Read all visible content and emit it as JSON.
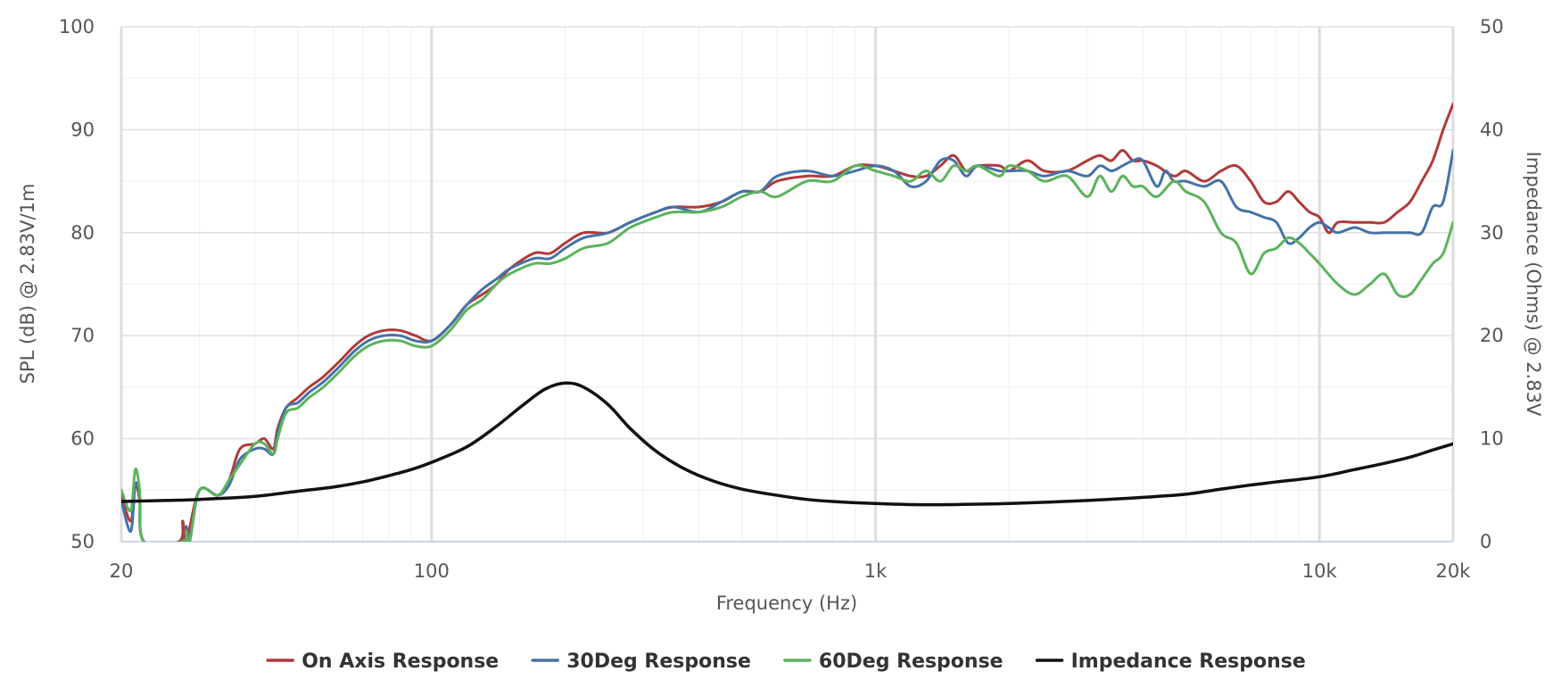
{
  "chart_data": {
    "type": "line",
    "xlabel": "Frequency (Hz)",
    "ylabel": "SPL (dB) @ 2.83V/1m",
    "y2label": "Impedance (Ohms) @ 2.83V",
    "xscale": "log",
    "xlim": [
      20,
      20000
    ],
    "ylim": [
      50,
      100
    ],
    "y2lim": [
      0,
      50
    ],
    "xticks": [
      {
        "value": 20,
        "label": "20"
      },
      {
        "value": 100,
        "label": "100"
      },
      {
        "value": 1000,
        "label": "1k"
      },
      {
        "value": 10000,
        "label": "10k"
      },
      {
        "value": 20000,
        "label": "20k"
      }
    ],
    "yticks": [
      50,
      60,
      70,
      80,
      90,
      100
    ],
    "y2ticks": [
      0,
      10,
      20,
      30,
      40,
      50
    ],
    "grid": true,
    "legend": "bottom-center",
    "series": [
      {
        "name": "On Axis Response",
        "axis": "left",
        "color": "#b03a3a",
        "points": [
          [
            20,
            54.5
          ],
          [
            21,
            52
          ],
          [
            21.5,
            55.5
          ],
          [
            22,
            54
          ],
          [
            22.5,
            50
          ],
          [
            27,
            50
          ],
          [
            27.5,
            52
          ],
          [
            28,
            50
          ],
          [
            30,
            55
          ],
          [
            33,
            54.5
          ],
          [
            35,
            56
          ],
          [
            37,
            59
          ],
          [
            40,
            59.5
          ],
          [
            42,
            60
          ],
          [
            44,
            59
          ],
          [
            45,
            61
          ],
          [
            47,
            63
          ],
          [
            50,
            64
          ],
          [
            53,
            65
          ],
          [
            57,
            66
          ],
          [
            62,
            67.5
          ],
          [
            67,
            69
          ],
          [
            72,
            70
          ],
          [
            78,
            70.5
          ],
          [
            85,
            70.5
          ],
          [
            92,
            70
          ],
          [
            100,
            69.5
          ],
          [
            110,
            71
          ],
          [
            120,
            73
          ],
          [
            130,
            74
          ],
          [
            140,
            75
          ],
          [
            150,
            76.5
          ],
          [
            170,
            78
          ],
          [
            185,
            78
          ],
          [
            200,
            79
          ],
          [
            220,
            80
          ],
          [
            250,
            80
          ],
          [
            280,
            81
          ],
          [
            320,
            82
          ],
          [
            350,
            82.5
          ],
          [
            400,
            82.5
          ],
          [
            450,
            83
          ],
          [
            500,
            84
          ],
          [
            550,
            84
          ],
          [
            600,
            85
          ],
          [
            700,
            85.5
          ],
          [
            800,
            85.5
          ],
          [
            900,
            86.5
          ],
          [
            1000,
            86.5
          ],
          [
            1100,
            86
          ],
          [
            1200,
            85.5
          ],
          [
            1300,
            85.5
          ],
          [
            1400,
            86.5
          ],
          [
            1500,
            87.5
          ],
          [
            1600,
            86
          ],
          [
            1700,
            86.5
          ],
          [
            1900,
            86.5
          ],
          [
            2000,
            86
          ],
          [
            2200,
            87
          ],
          [
            2400,
            86
          ],
          [
            2700,
            86
          ],
          [
            3000,
            87
          ],
          [
            3200,
            87.5
          ],
          [
            3400,
            87
          ],
          [
            3600,
            88
          ],
          [
            3800,
            87
          ],
          [
            4000,
            87
          ],
          [
            4300,
            86.5
          ],
          [
            4700,
            85.5
          ],
          [
            5000,
            86
          ],
          [
            5500,
            85
          ],
          [
            6000,
            86
          ],
          [
            6500,
            86.5
          ],
          [
            7000,
            85
          ],
          [
            7500,
            83
          ],
          [
            8000,
            83
          ],
          [
            8500,
            84
          ],
          [
            9000,
            83
          ],
          [
            9500,
            82
          ],
          [
            10000,
            81.5
          ],
          [
            10500,
            80
          ],
          [
            11000,
            81
          ],
          [
            12000,
            81
          ],
          [
            13000,
            81
          ],
          [
            14000,
            81
          ],
          [
            15000,
            82
          ],
          [
            16000,
            83
          ],
          [
            17000,
            85
          ],
          [
            18000,
            87
          ],
          [
            19000,
            90
          ],
          [
            20000,
            92.5
          ]
        ]
      },
      {
        "name": "30Deg Response",
        "axis": "left",
        "color": "#4472a8",
        "points": [
          [
            20,
            54
          ],
          [
            21,
            51
          ],
          [
            21.5,
            55.5
          ],
          [
            22,
            54.5
          ],
          [
            22.5,
            50
          ],
          [
            27.5,
            50
          ],
          [
            28,
            51.5
          ],
          [
            28.5,
            50
          ],
          [
            30,
            55
          ],
          [
            33,
            54.5
          ],
          [
            35,
            55.5
          ],
          [
            37,
            58
          ],
          [
            40,
            59
          ],
          [
            42,
            59
          ],
          [
            44,
            58.5
          ],
          [
            45,
            60.5
          ],
          [
            47,
            63
          ],
          [
            50,
            63.5
          ],
          [
            53,
            64.5
          ],
          [
            57,
            65.5
          ],
          [
            62,
            67
          ],
          [
            67,
            68.5
          ],
          [
            72,
            69.5
          ],
          [
            78,
            70
          ],
          [
            85,
            70
          ],
          [
            92,
            69.5
          ],
          [
            100,
            69.5
          ],
          [
            110,
            71
          ],
          [
            120,
            73
          ],
          [
            130,
            74.5
          ],
          [
            140,
            75.5
          ],
          [
            150,
            76.5
          ],
          [
            170,
            77.5
          ],
          [
            185,
            77.5
          ],
          [
            200,
            78.5
          ],
          [
            220,
            79.5
          ],
          [
            250,
            80
          ],
          [
            280,
            81
          ],
          [
            320,
            82
          ],
          [
            350,
            82.5
          ],
          [
            400,
            82
          ],
          [
            450,
            83
          ],
          [
            500,
            84
          ],
          [
            550,
            84
          ],
          [
            600,
            85.5
          ],
          [
            700,
            86
          ],
          [
            800,
            85.5
          ],
          [
            900,
            86
          ],
          [
            1000,
            86.5
          ],
          [
            1100,
            86
          ],
          [
            1200,
            84.5
          ],
          [
            1300,
            85
          ],
          [
            1400,
            87
          ],
          [
            1500,
            87
          ],
          [
            1600,
            85.5
          ],
          [
            1700,
            86.5
          ],
          [
            1900,
            86
          ],
          [
            2000,
            86
          ],
          [
            2200,
            86
          ],
          [
            2400,
            85.5
          ],
          [
            2700,
            86
          ],
          [
            3000,
            85.5
          ],
          [
            3200,
            86.5
          ],
          [
            3400,
            86
          ],
          [
            3600,
            86.5
          ],
          [
            3800,
            87
          ],
          [
            4000,
            87
          ],
          [
            4300,
            84.5
          ],
          [
            4500,
            86
          ],
          [
            4700,
            85
          ],
          [
            5000,
            85
          ],
          [
            5500,
            84.5
          ],
          [
            6000,
            85
          ],
          [
            6500,
            82.5
          ],
          [
            7000,
            82
          ],
          [
            7500,
            81.5
          ],
          [
            8000,
            81
          ],
          [
            8500,
            79
          ],
          [
            9000,
            79.5
          ],
          [
            9500,
            80.5
          ],
          [
            10000,
            81
          ],
          [
            10500,
            80.5
          ],
          [
            11000,
            80
          ],
          [
            12000,
            80.5
          ],
          [
            13000,
            80
          ],
          [
            14000,
            80
          ],
          [
            15000,
            80
          ],
          [
            16000,
            80
          ],
          [
            17000,
            80
          ],
          [
            18000,
            82.5
          ],
          [
            19000,
            83
          ],
          [
            20000,
            88
          ]
        ]
      },
      {
        "name": "60Deg Response",
        "axis": "left",
        "color": "#5bb35b",
        "points": [
          [
            20,
            55
          ],
          [
            21,
            53
          ],
          [
            21.5,
            57
          ],
          [
            22,
            55
          ],
          [
            22.5,
            50
          ],
          [
            27.5,
            50
          ],
          [
            28,
            51
          ],
          [
            28.5,
            50
          ],
          [
            30,
            55
          ],
          [
            33,
            54.5
          ],
          [
            35,
            56
          ],
          [
            37,
            57.5
          ],
          [
            40,
            59.5
          ],
          [
            42,
            59.5
          ],
          [
            44,
            58.5
          ],
          [
            45,
            60
          ],
          [
            47,
            62.5
          ],
          [
            50,
            63
          ],
          [
            53,
            64
          ],
          [
            57,
            65
          ],
          [
            62,
            66.5
          ],
          [
            67,
            68
          ],
          [
            72,
            69
          ],
          [
            78,
            69.5
          ],
          [
            85,
            69.5
          ],
          [
            92,
            69
          ],
          [
            100,
            69
          ],
          [
            110,
            70.5
          ],
          [
            120,
            72.5
          ],
          [
            130,
            73.5
          ],
          [
            140,
            75
          ],
          [
            150,
            76
          ],
          [
            170,
            77
          ],
          [
            185,
            77
          ],
          [
            200,
            77.5
          ],
          [
            220,
            78.5
          ],
          [
            250,
            79
          ],
          [
            280,
            80.5
          ],
          [
            320,
            81.5
          ],
          [
            350,
            82
          ],
          [
            400,
            82
          ],
          [
            450,
            82.5
          ],
          [
            500,
            83.5
          ],
          [
            550,
            84
          ],
          [
            600,
            83.5
          ],
          [
            700,
            85
          ],
          [
            800,
            85
          ],
          [
            900,
            86.5
          ],
          [
            1000,
            86
          ],
          [
            1100,
            85.5
          ],
          [
            1200,
            85
          ],
          [
            1300,
            86
          ],
          [
            1400,
            85
          ],
          [
            1500,
            86.5
          ],
          [
            1600,
            86
          ],
          [
            1700,
            86.5
          ],
          [
            1900,
            85.5
          ],
          [
            2000,
            86.5
          ],
          [
            2200,
            86
          ],
          [
            2400,
            85
          ],
          [
            2700,
            85.5
          ],
          [
            3000,
            83.5
          ],
          [
            3200,
            85.5
          ],
          [
            3400,
            84
          ],
          [
            3600,
            85.5
          ],
          [
            3800,
            84.5
          ],
          [
            4000,
            84.5
          ],
          [
            4300,
            83.5
          ],
          [
            4700,
            85
          ],
          [
            5000,
            84
          ],
          [
            5500,
            83
          ],
          [
            6000,
            80
          ],
          [
            6500,
            79
          ],
          [
            7000,
            76
          ],
          [
            7500,
            78
          ],
          [
            8000,
            78.5
          ],
          [
            8500,
            79.5
          ],
          [
            9000,
            79
          ],
          [
            9500,
            78
          ],
          [
            10000,
            77
          ],
          [
            11000,
            75
          ],
          [
            12000,
            74
          ],
          [
            13000,
            75
          ],
          [
            14000,
            76
          ],
          [
            15000,
            74
          ],
          [
            16000,
            74
          ],
          [
            17000,
            75.5
          ],
          [
            18000,
            77
          ],
          [
            19000,
            78
          ],
          [
            20000,
            81
          ]
        ]
      },
      {
        "name": "Impedance Response",
        "axis": "right",
        "color": "#111111",
        "points": [
          [
            20,
            3.9
          ],
          [
            25,
            4
          ],
          [
            30,
            4.1
          ],
          [
            40,
            4.4
          ],
          [
            50,
            4.9
          ],
          [
            60,
            5.3
          ],
          [
            70,
            5.8
          ],
          [
            80,
            6.4
          ],
          [
            90,
            7
          ],
          [
            100,
            7.7
          ],
          [
            120,
            9.2
          ],
          [
            140,
            11.2
          ],
          [
            160,
            13.2
          ],
          [
            180,
            14.8
          ],
          [
            200,
            15.4
          ],
          [
            220,
            15
          ],
          [
            250,
            13.3
          ],
          [
            280,
            11
          ],
          [
            320,
            8.8
          ],
          [
            370,
            7.1
          ],
          [
            430,
            5.9
          ],
          [
            500,
            5.1
          ],
          [
            600,
            4.5
          ],
          [
            700,
            4.1
          ],
          [
            800,
            3.9
          ],
          [
            1000,
            3.7
          ],
          [
            1200,
            3.6
          ],
          [
            1500,
            3.6
          ],
          [
            2000,
            3.7
          ],
          [
            3000,
            4
          ],
          [
            4000,
            4.3
          ],
          [
            5000,
            4.6
          ],
          [
            6000,
            5.1
          ],
          [
            7000,
            5.5
          ],
          [
            8000,
            5.8
          ],
          [
            10000,
            6.3
          ],
          [
            12000,
            7
          ],
          [
            14000,
            7.6
          ],
          [
            16000,
            8.2
          ],
          [
            18000,
            8.9
          ],
          [
            20000,
            9.5
          ]
        ]
      }
    ]
  }
}
